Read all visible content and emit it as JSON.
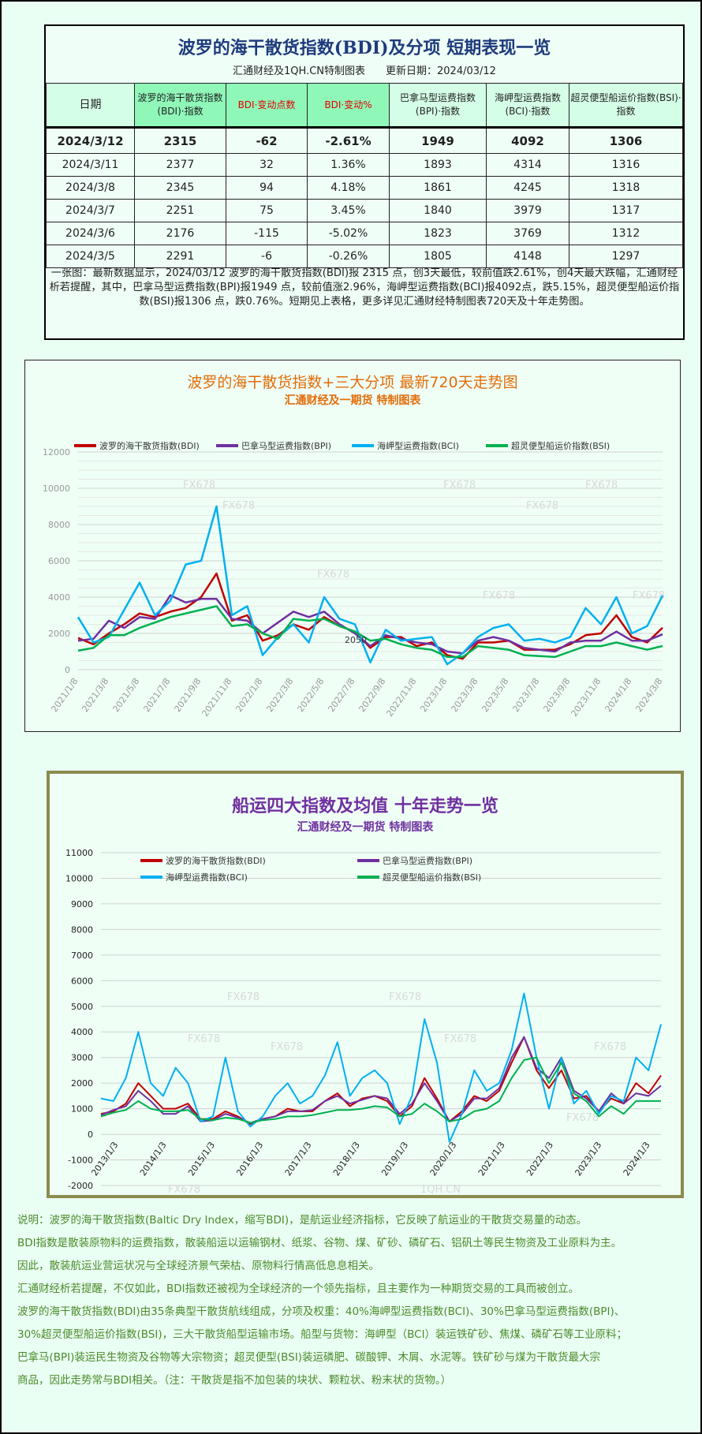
{
  "table": {
    "title": "波罗的海干散货指数(BDI)及分项 短期表现一览",
    "subtitle": "汇通财经及1QH.CN特制图表　　更新日期：2024/03/12",
    "headers": [
      "日期",
      "波罗的海干散货指数(BDI)·指数",
      "BDI·变动点数",
      "BDI·变动%",
      "巴拿马型运费指数(BPI)·指数",
      "海岬型运费指数(BCI)·指数",
      "超灵便型船运价指数(BSI)·指数"
    ],
    "rows": [
      [
        "2024/3/12",
        "2315",
        "-62",
        "-2.61%",
        "1949",
        "4092",
        "1306"
      ],
      [
        "2024/3/11",
        "2377",
        "32",
        "1.36%",
        "1893",
        "4314",
        "1316"
      ],
      [
        "2024/3/8",
        "2345",
        "94",
        "4.18%",
        "1861",
        "4245",
        "1318"
      ],
      [
        "2024/3/7",
        "2251",
        "75",
        "3.45%",
        "1840",
        "3979",
        "1317"
      ],
      [
        "2024/3/6",
        "2176",
        "-115",
        "-5.02%",
        "1823",
        "3769",
        "1312"
      ],
      [
        "2024/3/5",
        "2291",
        "-6",
        "-0.26%",
        "1805",
        "4148",
        "1297"
      ]
    ],
    "note": "一张图：最新数据显示，2024/03/12 波罗的海干散货指数(BDI)报 2315 点，创3天最低，较前值跌2.61%，创4天最大跌幅，汇通财经析若提醒，其中，巴拿马型运费指数(BPI)报1949 点，较前值涨2.96%，海岬型运费指数(BCI)报4092点，跌5.15%，超灵便型船运价指数(BSI)报1306 点，跌0.76%。短期见上表格，更多详见汇通财经特制图表720天及十年走势图。"
  },
  "colors": {
    "bdi": "#c00000",
    "bpi": "#7030a0",
    "bci": "#00b0f0",
    "bsi": "#00b050"
  },
  "chart_data": [
    {
      "type": "line",
      "title": "波罗的海干散货指数+三大分项  最新720天走势图",
      "subtitle": "汇通财经及一期货  特制图表",
      "title_color": "#e36c09",
      "x_tick_labels": [
        "2021/1/8",
        "2021/3/8",
        "2021/5/8",
        "2021/7/8",
        "2021/9/8",
        "2021/11/8",
        "2022/1/8",
        "2022/3/8",
        "2022/5/8",
        "2022/7/8",
        "2022/9/8",
        "2022/11/8",
        "2023/1/8",
        "2023/3/8",
        "2023/5/8",
        "2023/7/8",
        "2023/9/8",
        "2023/11/8",
        "2024/1/8",
        "2024/3/8"
      ],
      "ylim": [
        0,
        12000
      ],
      "y_ticks": [
        0,
        2000,
        4000,
        6000,
        8000,
        10000,
        12000
      ],
      "grid": true,
      "legend": "top",
      "annotation": "2050",
      "watermark": "FX678",
      "series": [
        {
          "name": "波罗的海干散货指数(BDI)",
          "key": "bdi",
          "values": [
            1750,
            1400,
            2000,
            2500,
            3100,
            2900,
            3200,
            3400,
            4000,
            5300,
            2700,
            3000,
            1600,
            1900,
            2500,
            2200,
            2900,
            2400,
            2100,
            1200,
            1800,
            1800,
            1300,
            1500,
            800,
            600,
            1500,
            1500,
            1600,
            1100,
            1100,
            1100,
            1400,
            1900,
            2000,
            3000,
            1800,
            1500,
            2315
          ]
        },
        {
          "name": "巴拿马型运费指数(BPI)",
          "key": "bpi",
          "values": [
            1600,
            1700,
            2700,
            2300,
            2900,
            2800,
            4100,
            3700,
            3900,
            3900,
            2800,
            2700,
            2000,
            2600,
            3200,
            2900,
            3200,
            2500,
            2000,
            1300,
            1900,
            1700,
            1500,
            1400,
            1000,
            900,
            1600,
            1800,
            1600,
            1200,
            1100,
            1000,
            1500,
            1600,
            1600,
            2100,
            1600,
            1600,
            1949
          ]
        },
        {
          "name": "海岬型运费指数(BCI)",
          "key": "bci",
          "values": [
            2900,
            1500,
            1800,
            3300,
            4800,
            3000,
            3800,
            5800,
            6000,
            9000,
            3000,
            3500,
            800,
            1800,
            2500,
            1500,
            4000,
            2800,
            2500,
            400,
            2200,
            1600,
            1700,
            1800,
            300,
            900,
            1800,
            2300,
            2500,
            1600,
            1700,
            1500,
            1800,
            3400,
            2500,
            4000,
            2000,
            2400,
            4092
          ]
        },
        {
          "name": "超灵便型船运价指数(BSI)",
          "key": "bsi",
          "values": [
            1050,
            1200,
            1900,
            1900,
            2300,
            2600,
            2900,
            3100,
            3300,
            3500,
            2400,
            2500,
            2000,
            1700,
            2800,
            2700,
            2800,
            2400,
            2100,
            1600,
            1700,
            1400,
            1200,
            1100,
            700,
            700,
            1300,
            1200,
            1100,
            800,
            750,
            700,
            1000,
            1300,
            1300,
            1500,
            1300,
            1100,
            1306
          ]
        }
      ]
    },
    {
      "type": "line",
      "title": "船运四大指数及均值 十年走势一览",
      "subtitle": "汇通财经及一期货 特制图表",
      "title_color": "#7030a0",
      "x_tick_labels": [
        "2013/1/3",
        "2014/1/3",
        "2015/1/3",
        "2016/1/3",
        "2017/1/3",
        "2018/1/3",
        "2019/1/3",
        "2020/1/3",
        "2021/1/3",
        "2022/1/3",
        "2023/1/3",
        "2024/1/3"
      ],
      "ylim": [
        -2000,
        11000
      ],
      "y_ticks": [
        -2000,
        -1000,
        0,
        1000,
        2000,
        3000,
        4000,
        5000,
        6000,
        7000,
        8000,
        9000,
        10000,
        11000
      ],
      "grid": true,
      "legend": "top",
      "watermark": "FX678",
      "watermark2": "1QH.CN",
      "series": [
        {
          "name": "波罗的海干散货指数(BDI)",
          "key": "bdi",
          "values": [
            800,
            900,
            1200,
            2000,
            1500,
            1000,
            1000,
            1200,
            600,
            600,
            900,
            700,
            400,
            600,
            700,
            1000,
            900,
            900,
            1300,
            1600,
            1100,
            1400,
            1500,
            1300,
            700,
            1100,
            2200,
            1400,
            500,
            900,
            1500,
            1300,
            1700,
            2800,
            3800,
            2500,
            1800,
            2500,
            1400,
            1500,
            900,
            1400,
            1200,
            2000,
            1600,
            2300
          ]
        },
        {
          "name": "巴拿马型运费指数(BPI)",
          "key": "bpi",
          "values": [
            750,
            950,
            1100,
            1700,
            1300,
            800,
            800,
            1100,
            500,
            550,
            800,
            650,
            450,
            600,
            700,
            900,
            900,
            950,
            1300,
            1500,
            1200,
            1350,
            1500,
            1400,
            800,
            1200,
            2000,
            1300,
            500,
            800,
            1400,
            1400,
            1800,
            3000,
            3800,
            2600,
            2200,
            3000,
            1700,
            1400,
            900,
            1600,
            1200,
            1600,
            1500,
            1900
          ]
        },
        {
          "name": "海岬型运费指数(BCI)",
          "key": "bci",
          "values": [
            1400,
            1300,
            2200,
            4000,
            2000,
            1500,
            2600,
            2000,
            500,
            700,
            3000,
            900,
            300,
            700,
            1500,
            2000,
            1200,
            1500,
            2300,
            3600,
            1500,
            2200,
            2500,
            2000,
            400,
            1500,
            4500,
            2800,
            -300,
            800,
            2500,
            1700,
            2000,
            3300,
            5500,
            3000,
            1000,
            3000,
            1200,
            1700,
            800,
            1500,
            1300,
            3000,
            2500,
            4300
          ]
        },
        {
          "name": "超灵便型船运价指数(BSI)",
          "key": "bsi",
          "values": [
            700,
            850,
            950,
            1300,
            1000,
            900,
            900,
            950,
            600,
            550,
            650,
            600,
            450,
            550,
            600,
            700,
            700,
            750,
            850,
            950,
            950,
            1000,
            1100,
            1050,
            700,
            800,
            1200,
            900,
            500,
            600,
            900,
            1000,
            1300,
            2200,
            2900,
            3000,
            2000,
            2800,
            1600,
            1300,
            700,
            1100,
            800,
            1300,
            1300,
            1300
          ]
        }
      ]
    }
  ],
  "notes": [
    "说明：波罗的海干散货指数(Baltic Dry Index，缩写BDI)，是航运业经济指标，它反映了航运业的干散货交易量的动态。",
    "BDI指数是散装原物料的运费指数，散装船运以运输钢材、纸浆、谷物、煤、矿砂、磷矿石、铝矾土等民生物资及工业原料为主。",
    "因此，散装航运业营运状况与全球经济景气荣枯、原物料行情高低息息相关。",
    "汇通财经析若提醒，不仅如此，BDI指数还被视为全球经济的一个领先指标，且主要作为一种期货交易的工具而被创立。",
    "波罗的海干散货指数(BDI)由35条典型干散货航线组成，分项及权重：40%海岬型运费指数(BCI)、30%巴拿马型运费指数(BPI)、",
    "30%超灵便型船运价指数(BSI)，三大干散货船型运输市场。船型与货物：海岬型（BCI）装运铁矿砂、焦煤、磷矿石等工业原料；",
    "巴拿马(BPI)装运民生物资及谷物等大宗物资；超灵便型(BSI)装运磷肥、碳酸钾、木屑、水泥等。铁矿砂与煤为干散货最大宗",
    "商品，因此走势常与BDI相关。（注：干散货是指不加包装的块状、颗粒状、粉末状的货物。）"
  ]
}
